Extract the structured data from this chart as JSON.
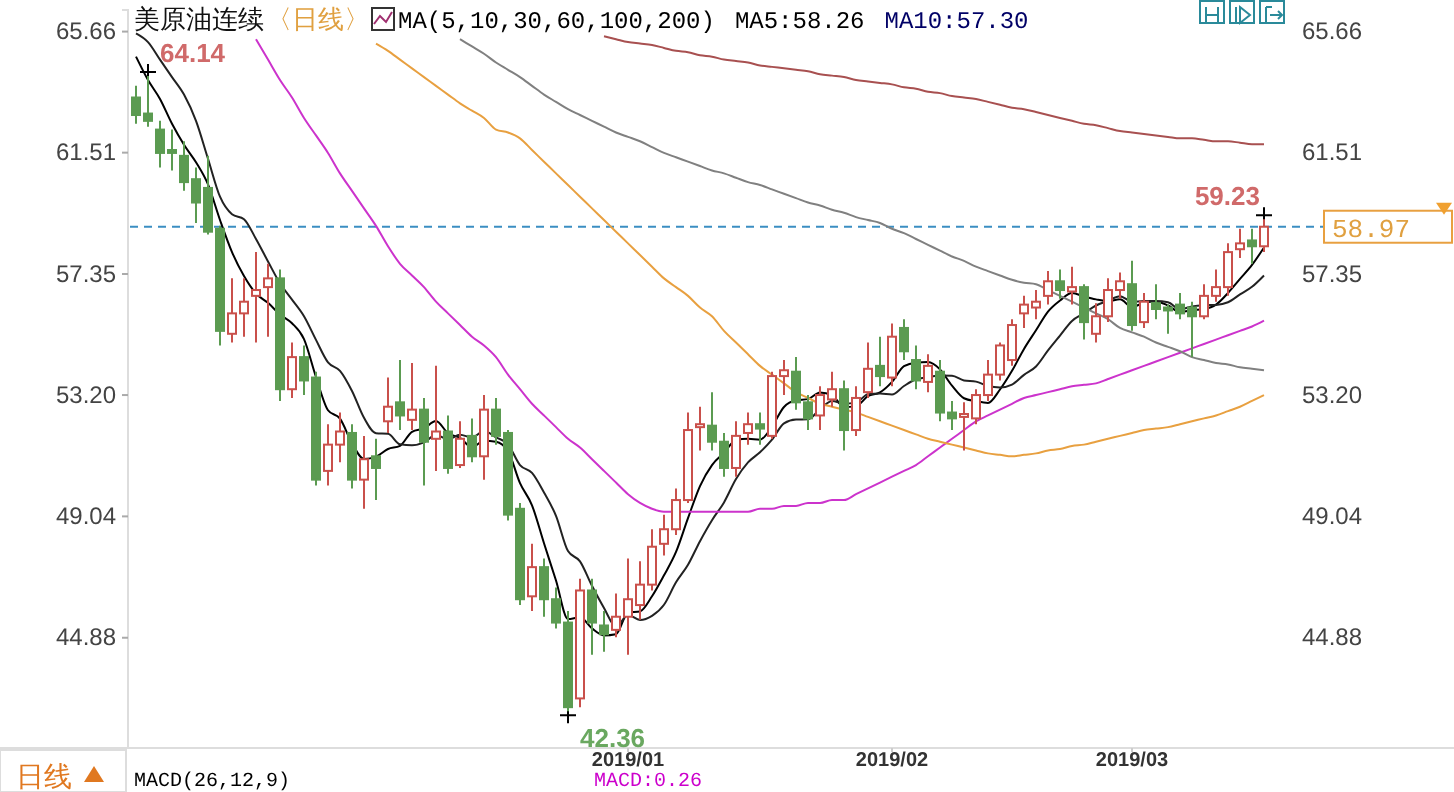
{
  "chart_data": {
    "type": "candlestick",
    "title": "美原油连续",
    "annotations": [
      "〈日线〉",
      "MA(5,10,30,60,100,200)",
      "MA5:58.26",
      "MA10:57.30",
      "日线",
      "MACD(26,12,9)",
      "MACD:0.26",
      "64.14",
      "42.36",
      "59.23"
    ],
    "categories": [
      null,
      null,
      null,
      null,
      null,
      null,
      null,
      null,
      null,
      null,
      null,
      null,
      null,
      null,
      null,
      null,
      null,
      null,
      null,
      null,
      null,
      null,
      null,
      null,
      null,
      null,
      null,
      null,
      null,
      null,
      null,
      null,
      null,
      null,
      null,
      null,
      null,
      null,
      null,
      null,
      null,
      "2019/01",
      null,
      null,
      null,
      null,
      null,
      null,
      null,
      null,
      null,
      null,
      null,
      null,
      null,
      null,
      null,
      null,
      null,
      null,
      null,
      null,
      null,
      "2019/02",
      null,
      null,
      null,
      null,
      null,
      null,
      null,
      null,
      null,
      null,
      null,
      null,
      null,
      null,
      null,
      null,
      null,
      null,
      null,
      "2019/03",
      null,
      null,
      null,
      null,
      null,
      null,
      null,
      null,
      null,
      null,
      null
    ],
    "ohlc": [
      [
        63.4,
        63.8,
        62.5,
        62.8
      ],
      [
        62.85,
        64.14,
        62.4,
        62.6
      ],
      [
        62.3,
        62.6,
        61.0,
        61.5
      ],
      [
        61.6,
        62.3,
        60.9,
        61.5
      ],
      [
        61.4,
        61.9,
        60.2,
        60.5
      ],
      [
        60.6,
        61.0,
        59.1,
        59.8
      ],
      [
        60.3,
        61.4,
        58.7,
        58.8
      ],
      [
        58.9,
        59.0,
        54.9,
        55.4
      ],
      [
        55.3,
        57.2,
        55.0,
        56.0
      ],
      [
        56.0,
        57.2,
        55.2,
        56.4
      ],
      [
        56.6,
        58.1,
        55.0,
        56.8
      ],
      [
        56.9,
        57.7,
        55.2,
        57.2
      ],
      [
        57.2,
        57.5,
        53.0,
        53.4
      ],
      [
        53.4,
        55.0,
        53.1,
        54.5
      ],
      [
        54.5,
        54.9,
        53.2,
        53.7
      ],
      [
        53.8,
        54.0,
        50.1,
        50.3
      ],
      [
        50.6,
        52.2,
        50.1,
        51.5
      ],
      [
        51.5,
        52.6,
        50.9,
        51.95
      ],
      [
        51.9,
        52.2,
        50.0,
        50.3
      ],
      [
        50.3,
        51.8,
        49.3,
        51.0
      ],
      [
        51.1,
        51.7,
        49.6,
        50.7
      ],
      [
        52.3,
        53.8,
        51.9,
        52.8
      ],
      [
        52.95,
        54.4,
        52.0,
        52.5
      ],
      [
        52.35,
        54.3,
        52.0,
        52.7
      ],
      [
        52.7,
        53.1,
        50.1,
        51.6
      ],
      [
        51.7,
        54.2,
        50.6,
        51.95
      ],
      [
        51.95,
        52.5,
        50.5,
        50.7
      ],
      [
        50.8,
        52.3,
        50.7,
        51.7
      ],
      [
        51.8,
        52.4,
        50.9,
        51.1
      ],
      [
        51.1,
        53.2,
        50.3,
        52.7
      ],
      [
        52.7,
        53.1,
        51.5,
        51.8
      ],
      [
        51.9,
        52.0,
        48.9,
        49.1
      ],
      [
        49.3,
        49.5,
        46.0,
        46.2
      ],
      [
        46.3,
        48.1,
        45.8,
        47.3
      ],
      [
        47.3,
        47.6,
        45.6,
        46.2
      ],
      [
        46.2,
        46.6,
        45.2,
        45.4
      ],
      [
        45.4,
        45.8,
        42.36,
        42.5
      ],
      [
        42.8,
        46.9,
        42.5,
        46.5
      ],
      [
        46.5,
        46.9,
        44.3,
        45.4
      ],
      [
        45.3,
        45.8,
        44.4,
        45.0
      ],
      [
        45.15,
        46.4,
        44.9,
        45.6
      ],
      [
        45.6,
        47.6,
        44.3,
        46.2
      ],
      [
        46.0,
        47.5,
        45.5,
        46.7
      ],
      [
        46.7,
        48.6,
        46.5,
        48.0
      ],
      [
        48.1,
        49.1,
        47.7,
        48.6
      ],
      [
        48.6,
        50.0,
        48.4,
        49.6
      ],
      [
        49.6,
        52.6,
        49.5,
        52.0
      ],
      [
        52.1,
        52.8,
        51.3,
        52.2
      ],
      [
        52.15,
        53.3,
        51.3,
        51.6
      ],
      [
        51.6,
        51.9,
        50.4,
        50.7
      ],
      [
        50.7,
        52.3,
        50.4,
        51.8
      ],
      [
        51.9,
        52.6,
        51.5,
        52.2
      ],
      [
        52.2,
        52.6,
        51.5,
        52.05
      ],
      [
        51.8,
        54.0,
        51.7,
        53.85
      ],
      [
        53.85,
        54.4,
        53.2,
        54.05
      ],
      [
        54.0,
        54.5,
        52.7,
        52.95
      ],
      [
        52.95,
        53.2,
        52.0,
        52.4
      ],
      [
        52.5,
        53.5,
        52.0,
        53.2
      ],
      [
        53.05,
        54.0,
        52.8,
        53.4
      ],
      [
        53.4,
        53.7,
        51.3,
        52.0
      ],
      [
        52.0,
        53.5,
        51.8,
        53.1
      ],
      [
        53.3,
        55.0,
        53.1,
        54.1
      ],
      [
        54.2,
        55.2,
        53.5,
        53.85
      ],
      [
        53.8,
        55.65,
        53.5,
        55.2
      ],
      [
        55.5,
        55.8,
        54.4,
        54.7
      ],
      [
        54.4,
        54.9,
        53.4,
        53.7
      ],
      [
        53.65,
        54.6,
        53.3,
        54.2
      ],
      [
        54.0,
        54.4,
        52.3,
        52.6
      ],
      [
        52.6,
        53.0,
        52.0,
        52.4
      ],
      [
        52.45,
        52.95,
        51.3,
        52.55
      ],
      [
        52.4,
        53.4,
        52.2,
        53.2
      ],
      [
        53.2,
        54.4,
        53.0,
        53.9
      ],
      [
        53.9,
        55.0,
        53.7,
        54.9
      ],
      [
        54.4,
        55.8,
        54.2,
        55.6
      ],
      [
        56.0,
        56.6,
        55.5,
        56.3
      ],
      [
        56.2,
        56.8,
        55.8,
        56.4
      ],
      [
        56.6,
        57.45,
        56.3,
        57.1
      ],
      [
        57.1,
        57.5,
        56.5,
        56.8
      ],
      [
        56.75,
        57.6,
        56.3,
        56.9
      ],
      [
        56.9,
        57.0,
        55.1,
        55.7
      ],
      [
        55.3,
        56.35,
        55.0,
        55.9
      ],
      [
        55.9,
        57.2,
        55.7,
        56.8
      ],
      [
        56.8,
        57.4,
        56.5,
        57.1
      ],
      [
        57.0,
        57.8,
        55.4,
        55.6
      ],
      [
        55.7,
        56.7,
        55.5,
        56.4
      ],
      [
        56.35,
        57.0,
        55.8,
        56.15
      ],
      [
        56.2,
        56.3,
        55.3,
        56.1
      ],
      [
        56.3,
        56.7,
        55.8,
        56.0
      ],
      [
        56.2,
        56.4,
        54.5,
        55.9
      ],
      [
        55.9,
        57.0,
        55.8,
        56.6
      ],
      [
        56.6,
        57.5,
        56.4,
        56.9
      ],
      [
        56.9,
        58.4,
        56.6,
        58.1
      ],
      [
        58.2,
        58.9,
        57.9,
        58.4
      ],
      [
        58.5,
        58.9,
        57.7,
        58.3
      ],
      [
        58.3,
        59.23,
        58.1,
        58.97
      ]
    ],
    "colors": [
      "#5b9b51",
      "#5b9b51",
      "#5b9b51",
      "#5b9b51",
      "#5b9b51",
      "#5b9b51",
      "#5b9b51",
      "#5b9b51",
      "#c9504b",
      "#c9504b",
      "#c9504b",
      "#c9504b",
      "#5b9b51",
      "#c9504b",
      "#5b9b51",
      "#5b9b51",
      "#c9504b",
      "#c9504b",
      "#5b9b51",
      "#c9504b",
      "#5b9b51",
      "#c9504b",
      "#5b9b51",
      "#c9504b",
      "#5b9b51",
      "#c9504b",
      "#5b9b51",
      "#c9504b",
      "#5b9b51",
      "#c9504b",
      "#5b9b51",
      "#5b9b51",
      "#5b9b51",
      "#c9504b",
      "#5b9b51",
      "#5b9b51",
      "#5b9b51",
      "#c9504b",
      "#5b9b51",
      "#5b9b51",
      "#c9504b",
      "#c9504b",
      "#c9504b",
      "#c9504b",
      "#c9504b",
      "#c9504b",
      "#c9504b",
      "#c9504b",
      "#5b9b51",
      "#5b9b51",
      "#c9504b",
      "#c9504b",
      "#5b9b51",
      "#c9504b",
      "#c9504b",
      "#5b9b51",
      "#5b9b51",
      "#c9504b",
      "#c9504b",
      "#5b9b51",
      "#c9504b",
      "#c9504b",
      "#5b9b51",
      "#c9504b",
      "#5b9b51",
      "#5b9b51",
      "#c9504b",
      "#5b9b51",
      "#5b9b51",
      "#c9504b",
      "#c9504b",
      "#c9504b",
      "#c9504b",
      "#c9504b",
      "#c9504b",
      "#c9504b",
      "#c9504b",
      "#5b9b51",
      "#c9504b",
      "#5b9b51",
      "#c9504b",
      "#c9504b",
      "#c9504b",
      "#5b9b51",
      "#c9504b",
      "#5b9b51",
      "#5b9b51",
      "#5b9b51",
      "#5b9b51",
      "#c9504b",
      "#c9504b",
      "#c9504b",
      "#c9504b",
      "#5b9b51",
      "#c9504b"
    ],
    "series": [
      {
        "type": "line",
        "color": "#000000",
        "values": [
          64.8,
          64.0,
          63.35,
          62.5,
          61.78,
          61.18,
          60.42,
          59.2,
          58.1,
          57.28,
          56.68,
          56.36,
          55.96,
          55.66,
          55.12,
          53.82,
          52.68,
          52.39,
          51.55,
          51.01,
          51.09,
          51.35,
          51.46,
          51.94,
          52.06,
          52.31,
          51.89,
          51.73,
          51.41,
          51.63,
          51.6,
          51.28,
          50.18,
          49.42,
          48.12,
          46.84,
          45.52,
          45.58,
          45.2,
          44.96,
          45.0,
          45.74,
          45.78,
          46.3,
          47.02,
          47.82,
          48.98,
          50.08,
          50.8,
          51.22,
          51.66,
          51.7,
          51.67,
          52.12,
          52.79,
          53.02,
          53.06,
          53.29,
          53.2,
          52.79,
          52.82,
          53.16,
          53.29,
          53.65,
          54.19,
          54.31,
          54.33,
          54.08,
          53.52,
          53.09,
          52.99,
          52.93,
          53.39,
          54.03,
          54.78,
          55.42,
          56.06,
          56.44,
          56.7,
          56.58,
          56.48,
          56.42,
          56.48,
          56.22,
          56.36,
          56.41,
          56.27,
          56.05,
          56.11,
          56.15,
          56.3,
          56.7,
          57.18,
          57.66,
          58.26
        ]
      },
      {
        "type": "line",
        "color": "#222222",
        "values": [
          65.6,
          65.3,
          64.7,
          64.1,
          63.5,
          62.6,
          61.3,
          60.0,
          59.4,
          59.23,
          58.55,
          57.78,
          57.03,
          56.47,
          55.9,
          55.09,
          54.32,
          54.03,
          53.34,
          52.42,
          51.89,
          51.87,
          51.51,
          51.48,
          51.58,
          51.83,
          51.68,
          51.84,
          51.74,
          51.97,
          51.75,
          51.51,
          50.8,
          50.53,
          49.86,
          49.06,
          47.85,
          47.5,
          46.66,
          45.9,
          45.26,
          45.66,
          45.49,
          45.63,
          46.01,
          46.78,
          47.38,
          48.19,
          48.91,
          49.52,
          50.32,
          50.89,
          51.24,
          51.67,
          52.23,
          52.36,
          52.37,
          52.71,
          53.0,
          52.91,
          52.94,
          53.23,
          53.25,
          53.22,
          53.51,
          53.74,
          53.81,
          53.87,
          53.86,
          53.7,
          53.66,
          53.51,
          53.46,
          53.56,
          53.89,
          54.18,
          54.73,
          55.24,
          55.74,
          56.0,
          56.27,
          56.43,
          56.59,
          56.4,
          56.42,
          56.42,
          56.38,
          56.14,
          56.24,
          56.28,
          56.29,
          56.38,
          56.65,
          56.91,
          57.3
        ]
      },
      {
        "type": "line",
        "color": "#cc33cc",
        "values": [
          null,
          null,
          null,
          null,
          null,
          null,
          null,
          null,
          null,
          null,
          65.4,
          64.7,
          64.0,
          63.4,
          62.7,
          62.1,
          61.5,
          60.8,
          60.2,
          59.6,
          59.0,
          58.3,
          57.7,
          57.3,
          56.9,
          56.4,
          56.0,
          55.6,
          55.2,
          54.9,
          54.5,
          53.9,
          53.4,
          52.9,
          52.5,
          52.1,
          51.7,
          51.4,
          51.0,
          50.6,
          50.2,
          49.8,
          49.5,
          49.3,
          49.2,
          49.2,
          49.2,
          49.2,
          49.2,
          49.2,
          49.2,
          49.2,
          49.3,
          49.3,
          49.4,
          49.4,
          49.5,
          49.5,
          49.6,
          49.6,
          49.8,
          50.0,
          50.2,
          50.4,
          50.6,
          50.8,
          51.1,
          51.4,
          51.7,
          52.0,
          52.3,
          52.5,
          52.7,
          52.9,
          53.1,
          53.2,
          53.3,
          53.4,
          53.5,
          53.55,
          53.6,
          53.75,
          53.9,
          54.05,
          54.2,
          54.35,
          54.5,
          54.65,
          54.8,
          54.95,
          55.1,
          55.25,
          55.4,
          55.55,
          55.75
        ]
      },
      {
        "type": "line",
        "color": "#e8a040",
        "values": [
          null,
          null,
          null,
          null,
          null,
          null,
          null,
          null,
          null,
          null,
          null,
          null,
          null,
          null,
          null,
          null,
          null,
          null,
          null,
          null,
          65.25,
          65.0,
          64.7,
          64.4,
          64.1,
          63.8,
          63.5,
          63.2,
          62.95,
          62.7,
          62.3,
          62.2,
          62.0,
          61.6,
          61.2,
          60.8,
          60.4,
          60.0,
          59.6,
          59.2,
          58.8,
          58.4,
          58.0,
          57.6,
          57.2,
          56.9,
          56.6,
          56.2,
          55.9,
          55.4,
          55.0,
          54.6,
          54.2,
          53.9,
          53.6,
          53.3,
          53.1,
          52.9,
          52.8,
          52.7,
          52.6,
          52.45,
          52.3,
          52.15,
          52.0,
          51.85,
          51.7,
          51.6,
          51.5,
          51.4,
          51.3,
          51.2,
          51.15,
          51.1,
          51.15,
          51.2,
          51.3,
          51.35,
          51.45,
          51.5,
          51.6,
          51.7,
          51.8,
          51.9,
          52.0,
          52.05,
          52.1,
          52.2,
          52.3,
          52.4,
          52.5,
          52.65,
          52.8,
          53.0,
          53.2
        ]
      },
      {
        "type": "line",
        "color": "#808080",
        "values": [
          null,
          null,
          null,
          null,
          null,
          null,
          null,
          null,
          null,
          null,
          null,
          null,
          null,
          null,
          null,
          null,
          null,
          null,
          null,
          null,
          null,
          null,
          null,
          null,
          null,
          null,
          null,
          65.4,
          65.15,
          64.9,
          64.6,
          64.35,
          64.1,
          63.8,
          63.5,
          63.25,
          63.0,
          62.8,
          62.6,
          62.4,
          62.2,
          62.05,
          61.9,
          61.7,
          61.5,
          61.35,
          61.2,
          61.05,
          60.9,
          60.8,
          60.65,
          60.5,
          60.4,
          60.25,
          60.1,
          59.95,
          59.8,
          59.7,
          59.55,
          59.45,
          59.3,
          59.2,
          59.1,
          58.9,
          58.75,
          58.55,
          58.35,
          58.15,
          57.95,
          57.8,
          57.6,
          57.45,
          57.3,
          57.15,
          57.05,
          57.0,
          56.8,
          56.6,
          56.4,
          56.2,
          56.0,
          55.8,
          55.5,
          55.35,
          55.2,
          55.0,
          54.85,
          54.7,
          54.5,
          54.4,
          54.3,
          54.25,
          54.15,
          54.1,
          54.05
        ]
      },
      {
        "type": "line",
        "color": "#a85050",
        "values": [
          null,
          null,
          null,
          null,
          null,
          null,
          null,
          null,
          null,
          null,
          null,
          null,
          null,
          null,
          null,
          null,
          null,
          null,
          null,
          null,
          null,
          null,
          null,
          null,
          null,
          null,
          null,
          null,
          null,
          null,
          null,
          null,
          null,
          null,
          null,
          null,
          null,
          null,
          null,
          65.5,
          65.4,
          65.3,
          65.25,
          65.2,
          65.1,
          65.0,
          64.95,
          64.85,
          64.8,
          64.7,
          64.65,
          64.6,
          64.5,
          64.45,
          64.4,
          64.35,
          64.3,
          64.2,
          64.15,
          64.1,
          64.0,
          63.95,
          63.9,
          63.85,
          63.75,
          63.7,
          63.6,
          63.55,
          63.45,
          63.4,
          63.35,
          63.25,
          63.15,
          63.05,
          63.0,
          62.9,
          62.8,
          62.7,
          62.6,
          62.5,
          62.45,
          62.35,
          62.25,
          62.2,
          62.15,
          62.1,
          62.05,
          62.0,
          62.0,
          61.95,
          61.9,
          61.9,
          61.85,
          61.8,
          61.8
        ]
      }
    ],
    "ylim": [
      41.1,
      66.4
    ],
    "yticks": [
      65.66,
      61.51,
      57.35,
      {
        "value": 53.2,
        "label": "53.20"
      },
      49.04,
      44.88
    ],
    "y2lim": [
      41.1,
      66.4
    ],
    "y2ticks": [
      65.66,
      61.51,
      57.35,
      {
        "value": 53.2,
        "label": "53.20"
      },
      49.04,
      44.88
    ],
    "ref_lines": [
      {
        "axis": "y",
        "value": 58.97,
        "label": "58.97",
        "color": "#3b8ec2",
        "line_style": "dashed"
      }
    ]
  }
}
